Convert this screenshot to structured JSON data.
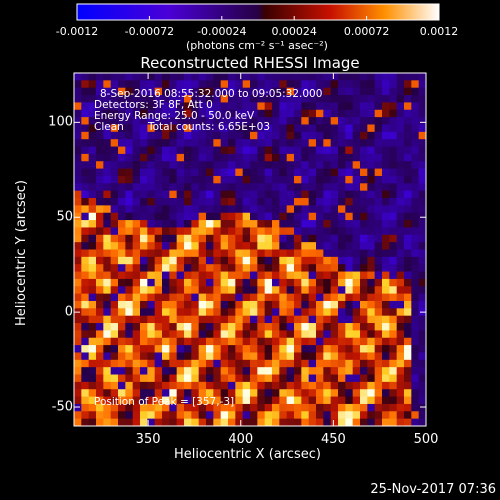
{
  "chart_data": {
    "type": "heatmap",
    "title": "Reconstructed RHESSI Image",
    "xlabel": "Heliocentric X (arcsec)",
    "ylabel": "Heliocentric Y (arcsec)",
    "xlim": [
      310,
      500
    ],
    "ylim": [
      -60,
      126
    ],
    "x_ticks": [
      "350",
      "400",
      "450",
      "500"
    ],
    "y_ticks": [
      "100",
      "50",
      "0",
      "-50"
    ],
    "colorbar": {
      "ticks": [
        "-0.0012",
        "-0.00072",
        "-0.00024",
        "0.00024",
        "0.00072",
        "0.0012"
      ],
      "range": [
        -0.0012,
        0.0012
      ],
      "unit_label": "(photons cm⁻² s⁻¹ asec⁻²)"
    },
    "annotations": {
      "time_range": "8-Sep-2016 08:55:32.000 to 09:05:32.000",
      "detectors": "Detectors: 3F 8F, Att 0",
      "energy_range": "Energy Range: 25.0 - 50.0 keV",
      "method": "Clean",
      "total_counts": "Total counts: 6.65E+03",
      "peak": "Position of Peak = [357,-3]"
    },
    "peak_position": [
      357,
      -3
    ],
    "footer_date": "25-Nov-2017 07:36"
  }
}
